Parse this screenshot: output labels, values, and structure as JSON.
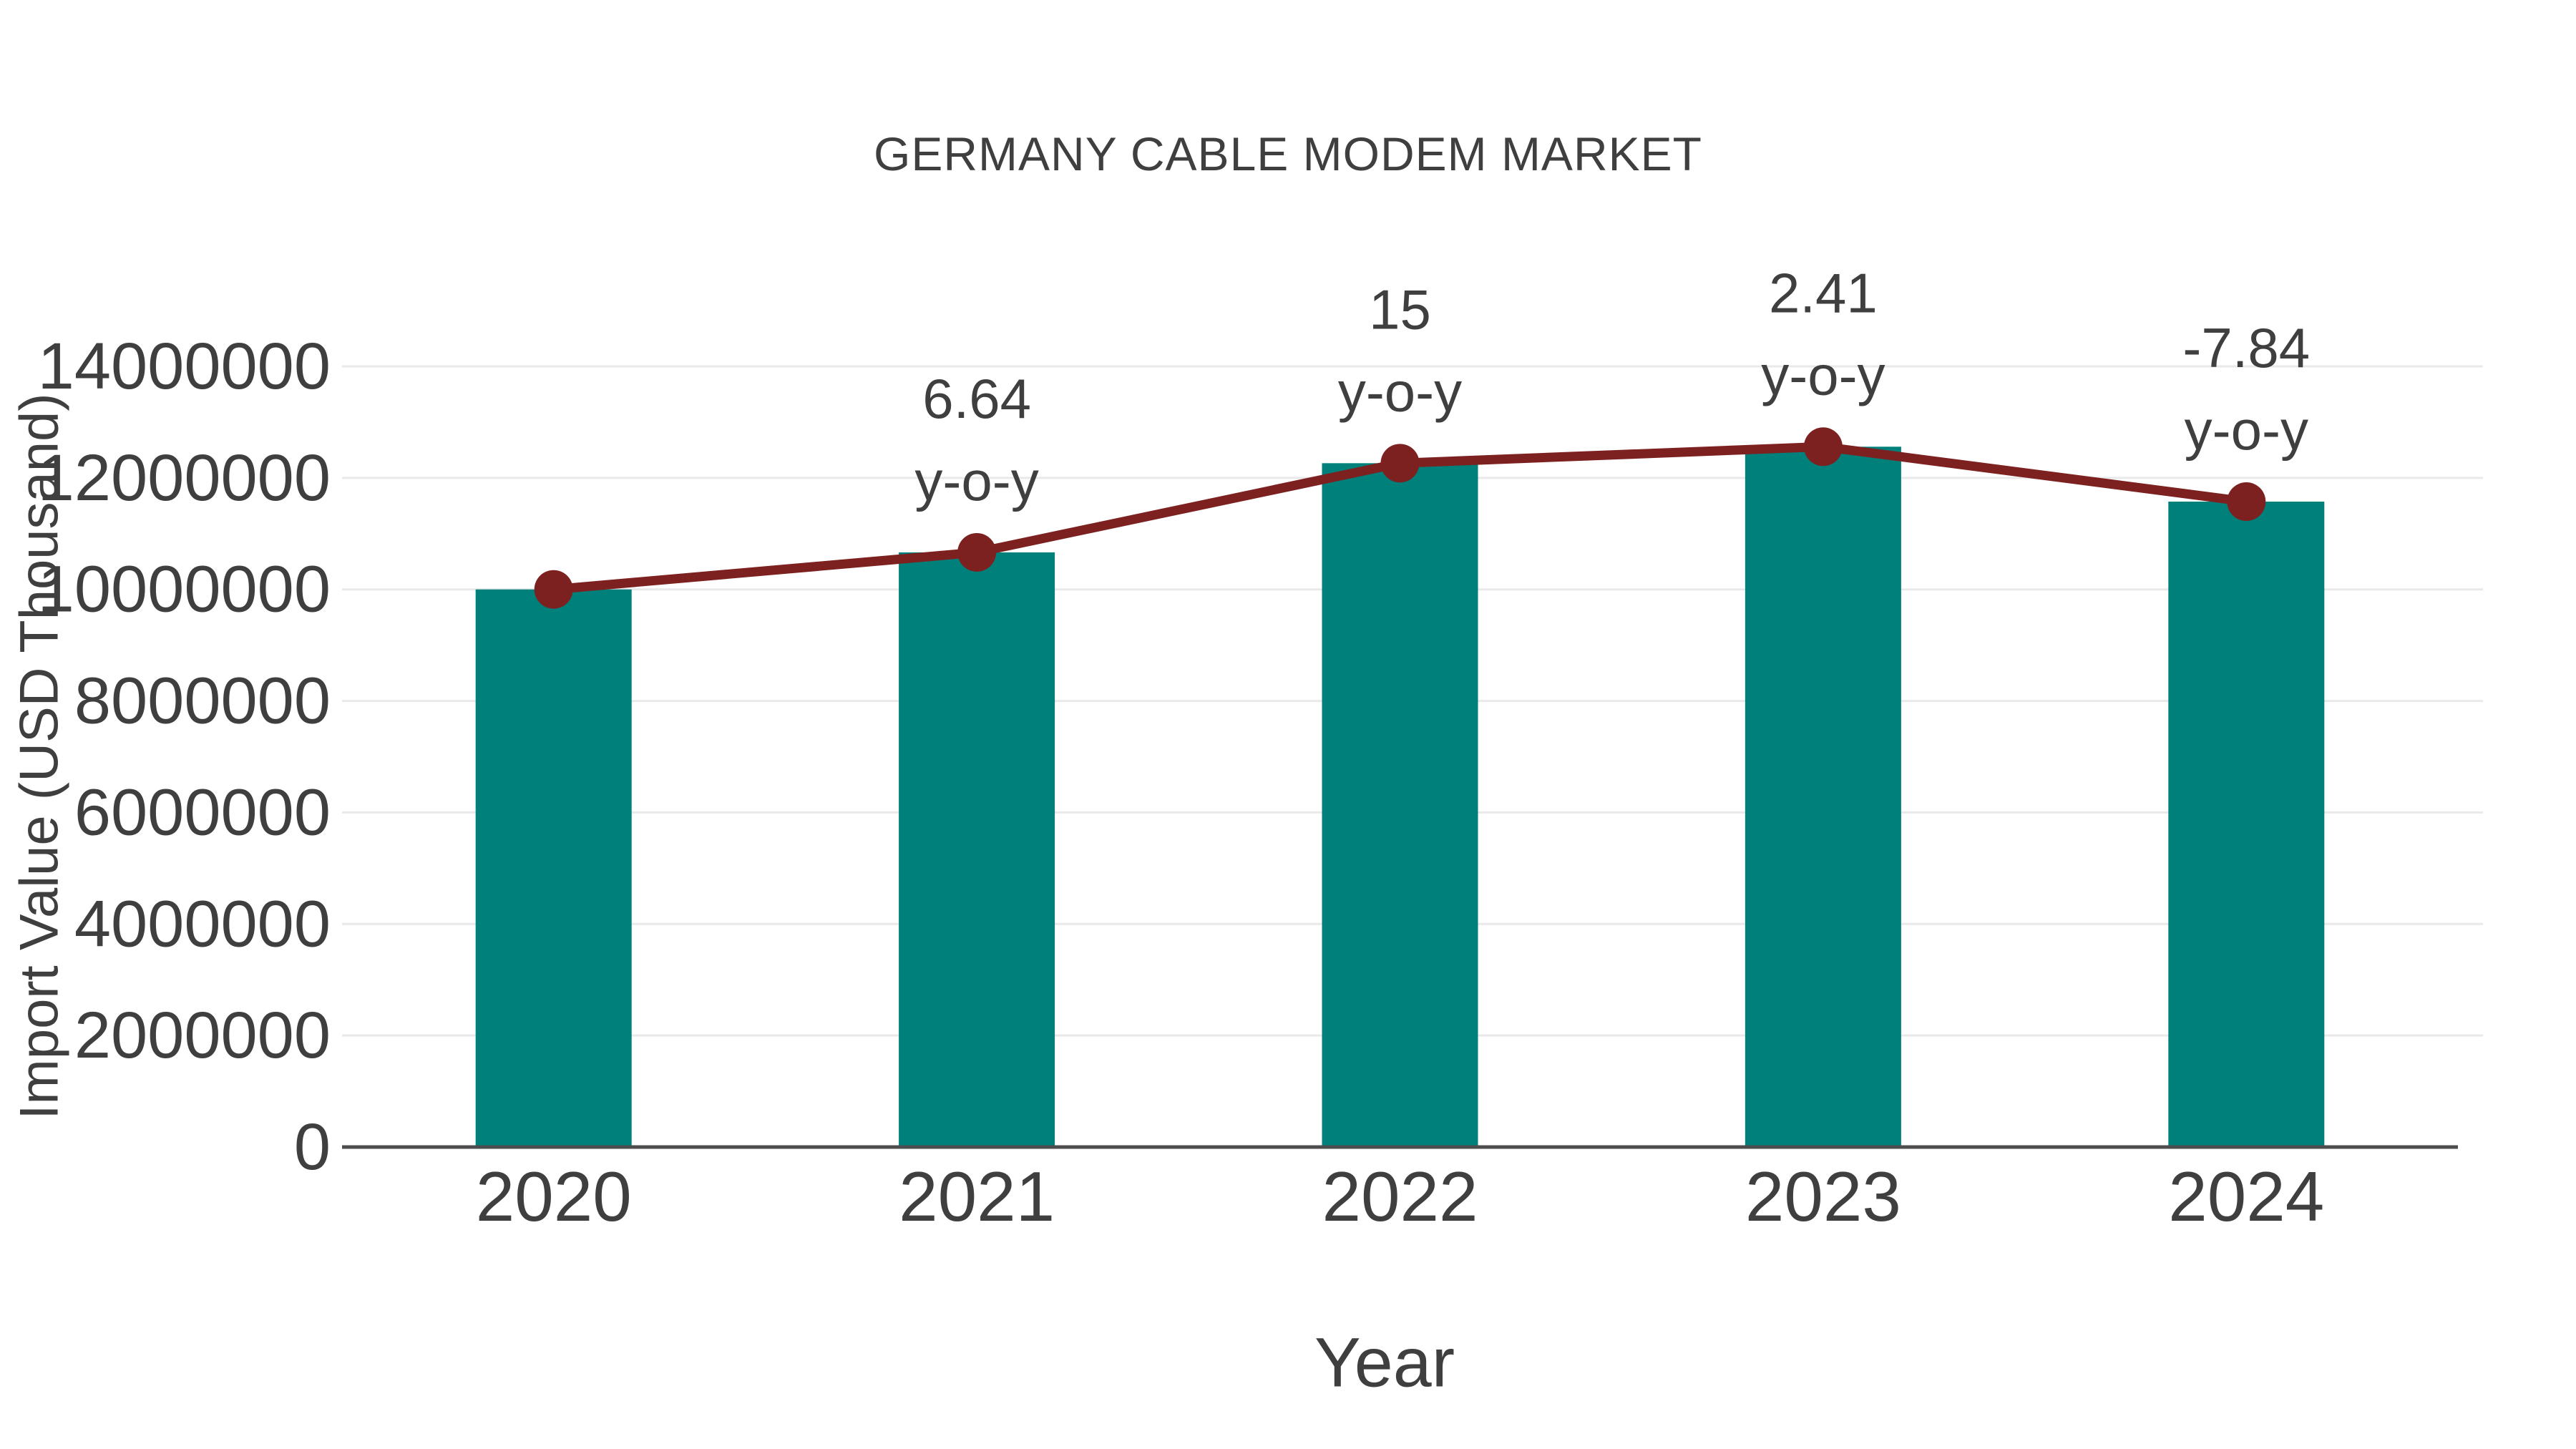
{
  "chart_data": {
    "type": "bar",
    "title": "GERMANY CABLE MODEM MARKET",
    "xlabel": "Year",
    "ylabel": "Import Value (USD Thousand)",
    "categories": [
      "2020",
      "2021",
      "2022",
      "2023",
      "2024"
    ],
    "series": [
      {
        "name": "Import Value (USD Thousand)",
        "type": "bar",
        "color": "#00807B",
        "values": [
          10000000,
          10664000,
          12263600,
          12559200,
          11574500
        ]
      },
      {
        "name": "y-o-y growth",
        "type": "line",
        "color": "#7D2120",
        "anchored_to_bar_tops": true,
        "values_percent": [
          null,
          6.64,
          15,
          2.41,
          -7.84
        ]
      }
    ],
    "annotations": [
      {
        "category": "2021",
        "value": "6.64",
        "caption": "y-o-y"
      },
      {
        "category": "2022",
        "value": "15",
        "caption": "y-o-y"
      },
      {
        "category": "2023",
        "value": "2.41",
        "caption": "y-o-y"
      },
      {
        "category": "2024",
        "value": "-7.84",
        "caption": "y-o-y"
      }
    ],
    "ylim": [
      0,
      14000000
    ],
    "yticks": [
      0,
      2000000,
      4000000,
      6000000,
      8000000,
      10000000,
      12000000,
      14000000
    ],
    "grid": "horizontal",
    "legend_position": "none",
    "colors": {
      "bar": "#00807B",
      "line": "#7D2120",
      "marker": "#7D2120",
      "grid": "#E9E9E9",
      "axis": "#4D4D4D",
      "text": "#3F3F3F"
    }
  }
}
